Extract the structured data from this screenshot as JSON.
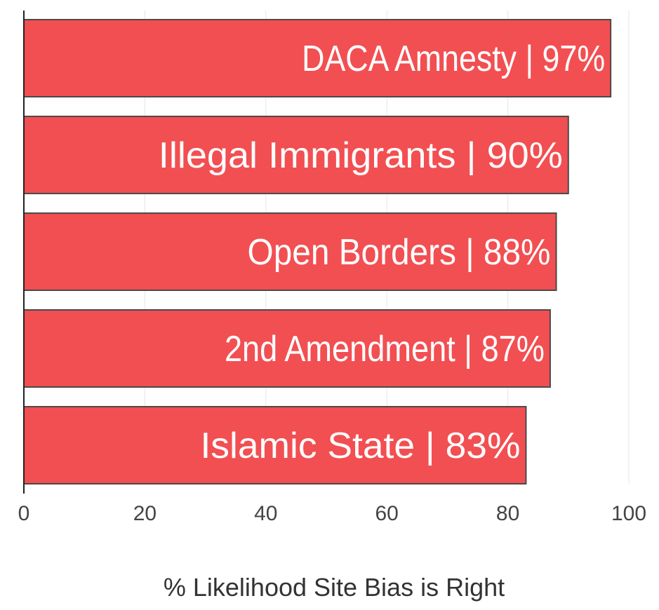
{
  "chart_data": {
    "type": "bar",
    "orientation": "horizontal",
    "categories": [
      "DACA Amnesty",
      "Illegal Immigrants",
      "Open Borders",
      "2nd Amendment",
      "Islamic State"
    ],
    "values": [
      97,
      90,
      88,
      87,
      83
    ],
    "bar_labels": [
      "DACA Amnesty | 97%",
      "Illegal Immigrants | 90%",
      "Open Borders | 88%",
      "2nd Amendment | 87%",
      "Islamic State | 83%"
    ],
    "xlabel": "% Likelihood Site Bias is Right",
    "ylabel": "",
    "xlim": [
      0,
      100
    ],
    "xticks": [
      "0",
      "20",
      "40",
      "60",
      "80",
      "100"
    ],
    "grid": "vertical",
    "colors": {
      "bar_fill": "#f24f52",
      "bar_stroke": "#4a4a4a",
      "grid": "#e6e6e6",
      "axis": "#222222"
    }
  }
}
